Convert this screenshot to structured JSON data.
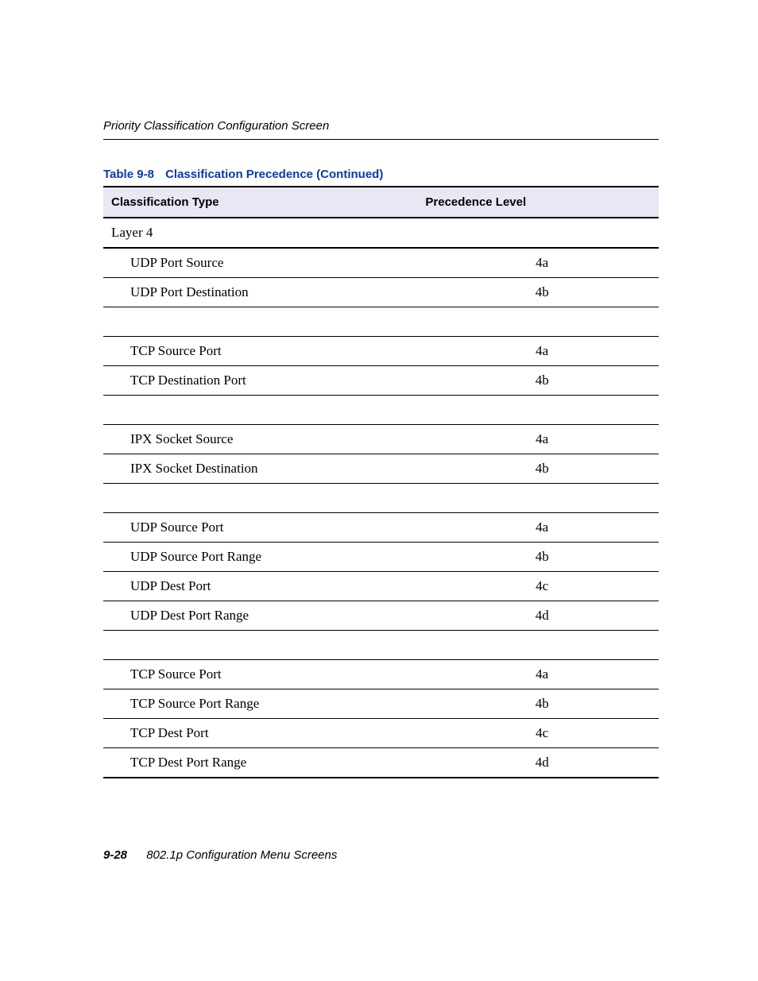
{
  "header": {
    "section_title": "Priority Classification Configuration Screen"
  },
  "table": {
    "caption_label": "Table 9-8",
    "caption_name": "Classification Precedence (Continued)",
    "columns": {
      "type": "Classification Type",
      "prec": "Precedence Level"
    },
    "section_row": "Layer 4",
    "groups": [
      {
        "rows": [
          {
            "type": "UDP Port Source",
            "prec": "4a"
          },
          {
            "type": "UDP Port Destination",
            "prec": "4b"
          }
        ]
      },
      {
        "rows": [
          {
            "type": "TCP Source Port",
            "prec": "4a"
          },
          {
            "type": "TCP Destination Port",
            "prec": "4b"
          }
        ]
      },
      {
        "rows": [
          {
            "type": "IPX Socket Source",
            "prec": "4a"
          },
          {
            "type": "IPX Socket Destination",
            "prec": "4b"
          }
        ]
      },
      {
        "rows": [
          {
            "type": "UDP Source Port",
            "prec": "4a"
          },
          {
            "type": "UDP Source Port Range",
            "prec": "4b"
          },
          {
            "type": "UDP Dest Port",
            "prec": "4c"
          },
          {
            "type": "UDP Dest Port Range",
            "prec": "4d"
          }
        ]
      },
      {
        "rows": [
          {
            "type": "TCP Source Port",
            "prec": "4a"
          },
          {
            "type": "TCP Source Port Range",
            "prec": "4b"
          },
          {
            "type": "TCP Dest Port",
            "prec": "4c"
          },
          {
            "type": "TCP Dest Port Range",
            "prec": "4d"
          }
        ]
      }
    ]
  },
  "footer": {
    "page_number": "9-28",
    "chapter": "802.1p Configuration Menu Screens"
  },
  "colors": {
    "link_blue": "#0b3c9e",
    "header_bg": "#e8e8f4",
    "text": "#000000",
    "background": "#ffffff"
  }
}
